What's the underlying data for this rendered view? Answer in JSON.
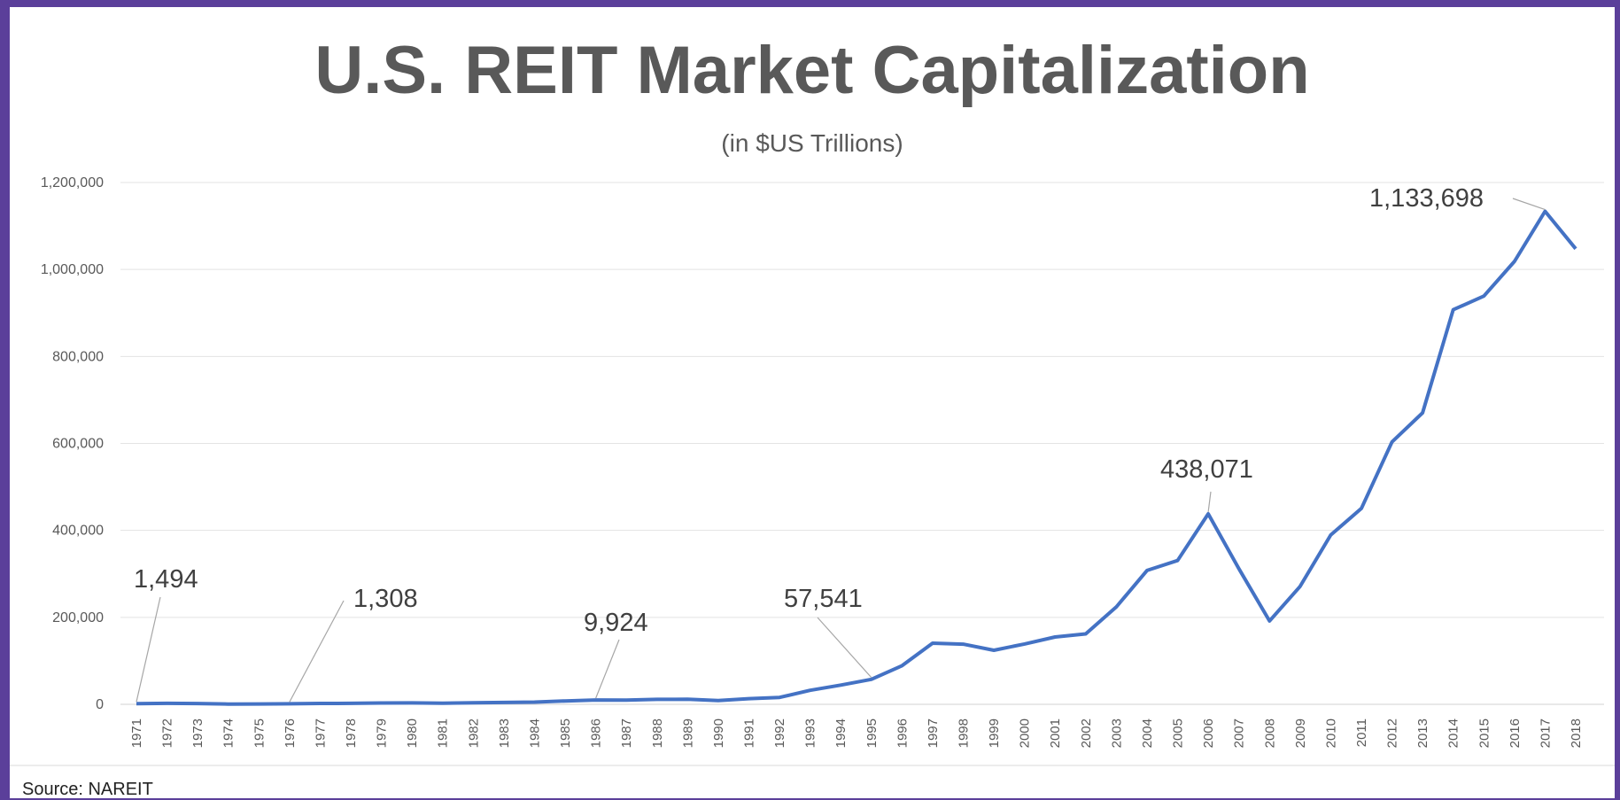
{
  "chart_data": {
    "type": "line",
    "title": "U.S. REIT Market Capitalization",
    "subtitle": "(in $US Trillions)",
    "source": "Source: NAREIT",
    "ylim": [
      0,
      1200000
    ],
    "yticks": [
      "0",
      "200,000",
      "400,000",
      "600,000",
      "800,000",
      "1,000,000",
      "1,200,000"
    ],
    "ytick_values": [
      0,
      200000,
      400000,
      600000,
      800000,
      1000000,
      1200000
    ],
    "grid": true,
    "line_color": "#4472c4",
    "x": [
      "1971",
      "1972",
      "1973",
      "1974",
      "1975",
      "1976",
      "1977",
      "1978",
      "1979",
      "1980",
      "1981",
      "1982",
      "1983",
      "1984",
      "1985",
      "1986",
      "1987",
      "1988",
      "1989",
      "1990",
      "1991",
      "1992",
      "1993",
      "1994",
      "1995",
      "1996",
      "1997",
      "1998",
      "1999",
      "2000",
      "2001",
      "2002",
      "2003",
      "2004",
      "2005",
      "2006",
      "2007",
      "2008",
      "2009",
      "2010",
      "2011",
      "2012",
      "2013",
      "2014",
      "2015",
      "2016",
      "2017",
      "2018"
    ],
    "values": [
      1494,
      2200,
      1800,
      700,
      900,
      1308,
      2000,
      2300,
      3000,
      3300,
      2400,
      3600,
      4300,
      5100,
      7700,
      9924,
      9700,
      11400,
      11700,
      8700,
      13000,
      15900,
      32200,
      44300,
      57541,
      88800,
      140500,
      138300,
      124300,
      138700,
      154900,
      161900,
      224200,
      307900,
      330700,
      438071,
      312000,
      191700,
      271200,
      389300,
      450500,
      603400,
      670300,
      907400,
      938900,
      1018700,
      1133698,
      1047600
    ],
    "labels": [
      {
        "index": 0,
        "text": "1,494"
      },
      {
        "index": 5,
        "text": "1,308"
      },
      {
        "index": 15,
        "text": "9,924"
      },
      {
        "index": 24,
        "text": "57,541"
      },
      {
        "index": 35,
        "text": "438,071"
      },
      {
        "index": 46,
        "text": "1,133,698"
      }
    ]
  }
}
